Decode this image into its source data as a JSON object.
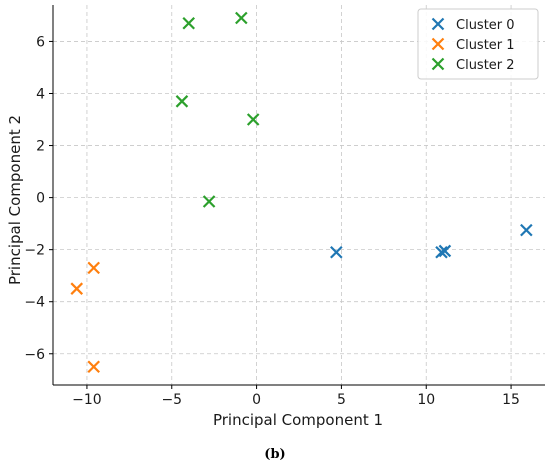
{
  "caption": "(b)",
  "chart_data": {
    "type": "scatter",
    "xlabel": "Principal Component 1",
    "ylabel": "Principal Component 2",
    "xlim": [
      -12,
      17
    ],
    "ylim": [
      -7.2,
      7.4
    ],
    "xticks": [
      -10,
      -5,
      0,
      5,
      10,
      15
    ],
    "yticks": [
      -6,
      -4,
      -2,
      0,
      2,
      4,
      6
    ],
    "xtick_labels": [
      "−10",
      "−5",
      "0",
      "5",
      "10",
      "15"
    ],
    "ytick_labels": [
      "−6",
      "−4",
      "−2",
      "0",
      "2",
      "4",
      "6"
    ],
    "grid": true,
    "legend_position": "top-right",
    "marker": "x",
    "series": [
      {
        "name": "Cluster 0",
        "color": "#1f77b4",
        "x": [
          4.7,
          10.9,
          11.1,
          15.9
        ],
        "y": [
          -2.1,
          -2.1,
          -2.05,
          -1.25
        ]
      },
      {
        "name": "Cluster 1",
        "color": "#ff7f0e",
        "x": [
          -9.6,
          -10.6,
          -9.6
        ],
        "y": [
          -2.7,
          -3.5,
          -6.5
        ]
      },
      {
        "name": "Cluster 2",
        "color": "#2ca02c",
        "x": [
          -4.0,
          -0.9,
          -4.4,
          -0.2,
          -2.8
        ],
        "y": [
          6.7,
          6.9,
          3.7,
          3.0,
          -0.15
        ]
      }
    ]
  }
}
